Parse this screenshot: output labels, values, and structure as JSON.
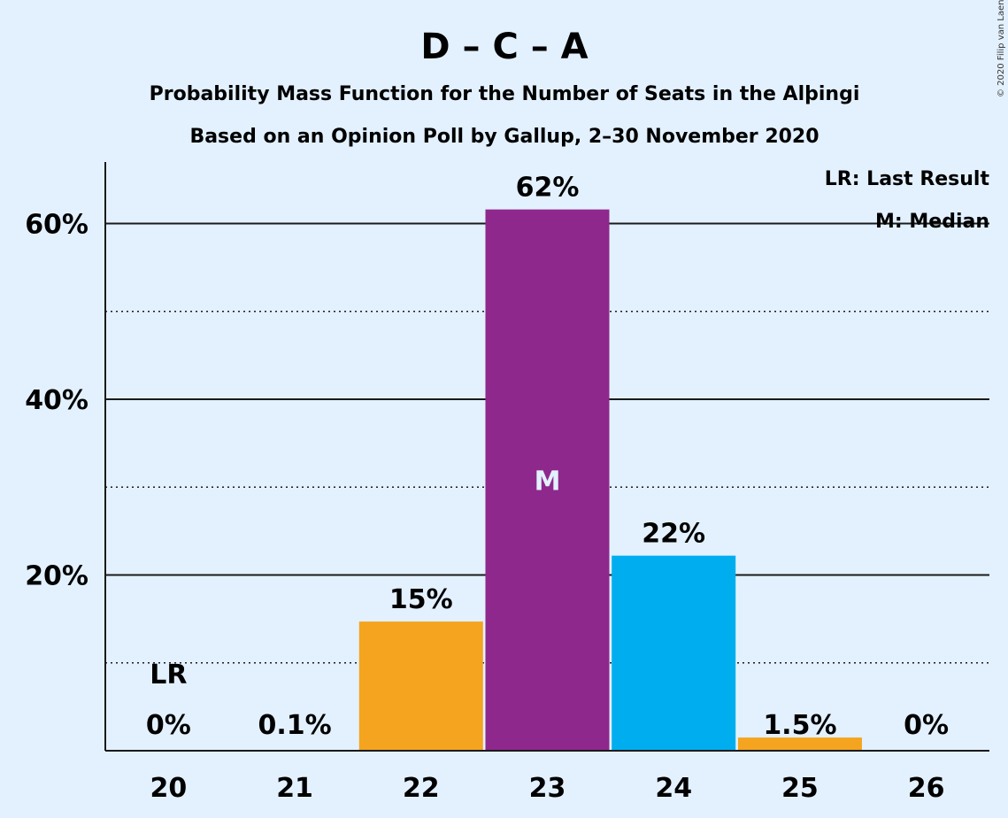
{
  "title": "D – C – A",
  "subtitle1": "Probability Mass Function for the Number of Seats in the Alþingi",
  "subtitle2": "Based on an Opinion Poll by Gallup, 2–30 November 2020",
  "copyright": "© 2020 Filip van Laenen",
  "legend": {
    "lr": "LR: Last Result",
    "m": "M: Median"
  },
  "chart_data": {
    "type": "bar",
    "categories": [
      "20",
      "21",
      "22",
      "23",
      "24",
      "25",
      "26"
    ],
    "values": [
      0,
      0.1,
      14.7,
      61.6,
      22.2,
      1.5,
      0
    ],
    "value_labels": [
      "0%",
      "0.1%",
      "15%",
      "62%",
      "22%",
      "1.5%",
      "0%"
    ],
    "bar_colors": [
      "#f4a41f",
      "#f4a41f",
      "#f4a41f",
      "#8e288c",
      "#00aeef",
      "#f4a41f",
      "#f4a41f"
    ],
    "ylim": [
      0,
      67
    ],
    "yticks_major": [
      20,
      40,
      60
    ],
    "ytick_labels": [
      "20%",
      "40%",
      "60%"
    ],
    "yticks_minor": [
      10,
      30,
      50
    ],
    "last_result_index": 0,
    "last_result_marker": "LR",
    "median_index": 3,
    "median_marker": "M",
    "xlabel": "",
    "ylabel": "",
    "grid": true,
    "legend_position": "top-right"
  }
}
